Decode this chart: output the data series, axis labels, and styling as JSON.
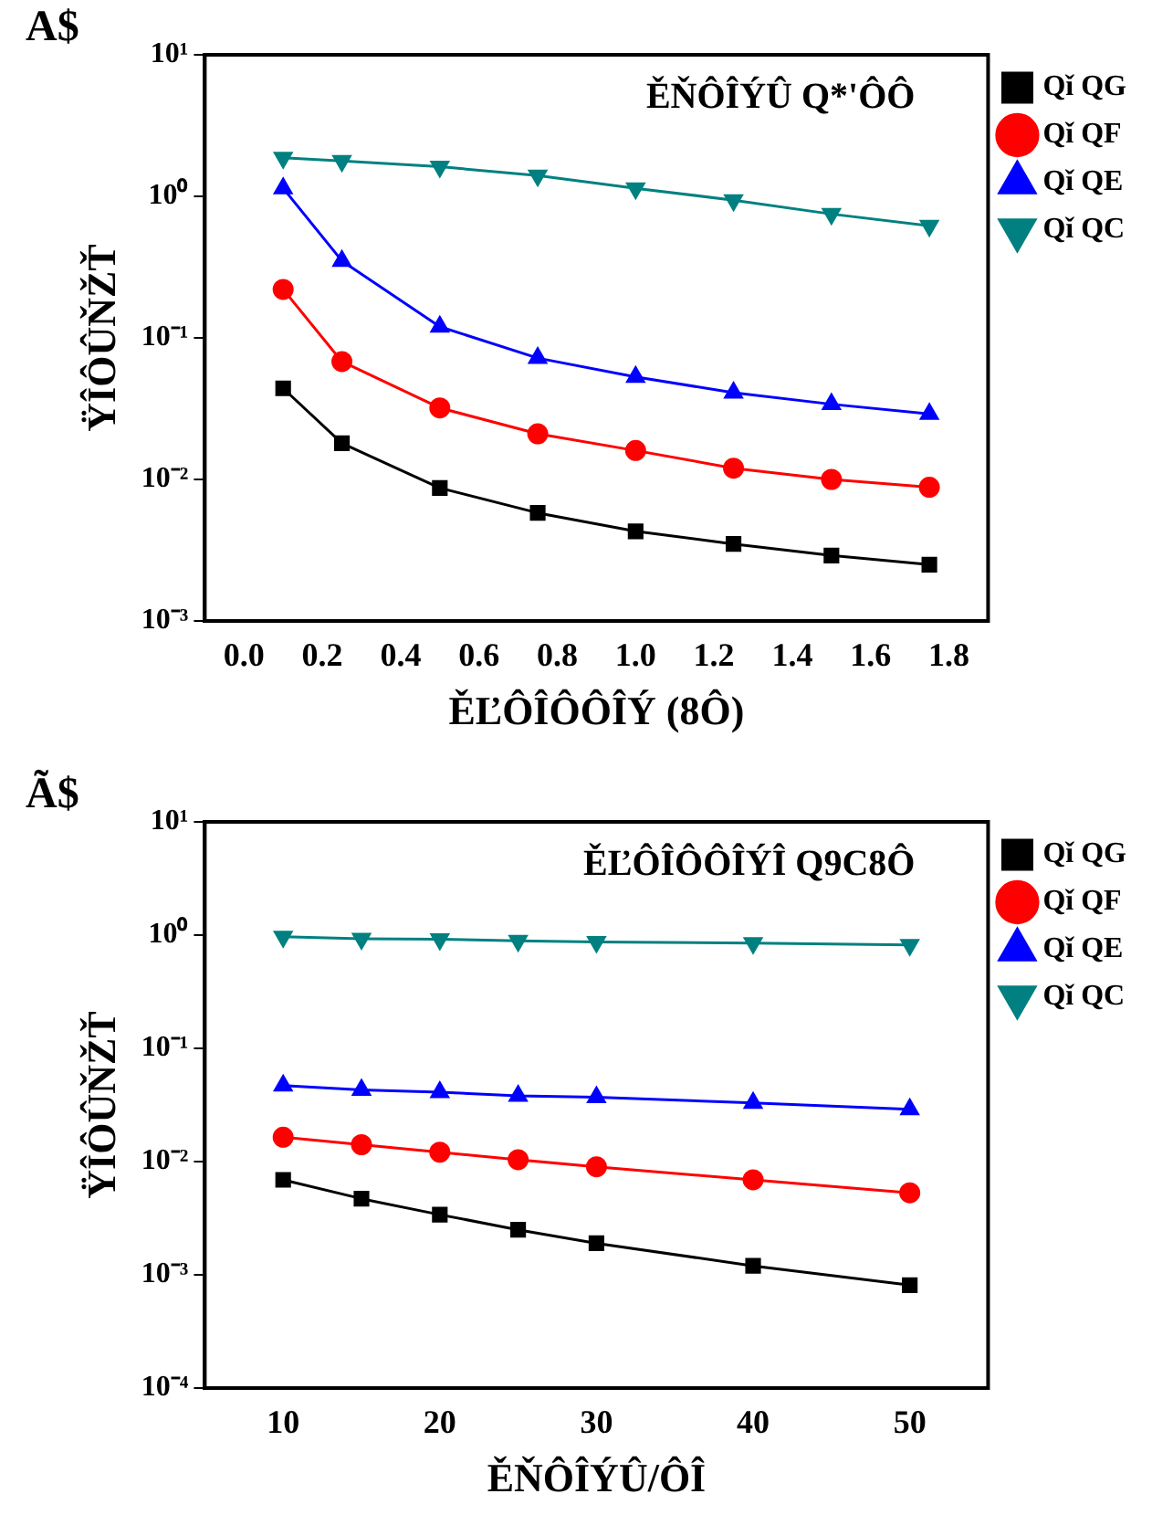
{
  "chart_data": [
    {
      "type": "line",
      "annotations": [
        "A$",
        "ĚŇÔÎÝÛ Q*'ÔÔ"
      ],
      "xlabel": "ĚĽÔÎÔÔÎÝ (8Ô)",
      "ylabel": "ŸÎÔÛŇŽŤ",
      "log": "y",
      "legend": "top right",
      "grid": false,
      "x": [
        0.1,
        0.25,
        0.5,
        0.75,
        1.0,
        1.25,
        1.5,
        1.75
      ],
      "xlim": [
        -0.1,
        1.9
      ],
      "xticks": [
        {
          "value": 0,
          "label": "0.0"
        },
        {
          "value": 0.2,
          "label": "0.2"
        },
        {
          "value": 0.4,
          "label": "0.4"
        },
        {
          "value": 0.6,
          "label": "0.6"
        },
        {
          "value": 0.8,
          "label": "0.8"
        },
        {
          "value": 1.0,
          "label": "1.0"
        },
        {
          "value": 1.2,
          "label": "1.2"
        },
        {
          "value": 1.4,
          "label": "1.4"
        },
        {
          "value": 1.6,
          "label": "1.6"
        },
        {
          "value": 1.8,
          "label": "1.8"
        }
      ],
      "ylim": [
        0.001,
        10
      ],
      "yticks": [
        {
          "value": 0.001,
          "label": "10⁻³"
        },
        {
          "value": 0.01,
          "label": "10⁻²"
        },
        {
          "value": 0.1,
          "label": "10⁻¹"
        },
        {
          "value": 1,
          "label": "10⁰"
        },
        {
          "value": 10,
          "label": "10¹"
        }
      ],
      "series": [
        {
          "name": "Qǐ QG",
          "color": "#000000",
          "marker": "square",
          "values": [
            0.044,
            0.018,
            0.0087,
            0.0058,
            0.0043,
            0.0035,
            0.0029,
            0.0025
          ]
        },
        {
          "name": "Qǐ QF",
          "color": "#ff0000",
          "marker": "circle",
          "values": [
            0.22,
            0.068,
            0.032,
            0.021,
            0.016,
            0.012,
            0.01,
            0.0088
          ]
        },
        {
          "name": "Qǐ QE",
          "color": "#0000ff",
          "marker": "triangle",
          "values": [
            1.14,
            0.35,
            0.12,
            0.072,
            0.053,
            0.041,
            0.034,
            0.029
          ]
        },
        {
          "name": "Qǐ QC",
          "color": "#008080",
          "marker": "triangle-down",
          "values": [
            1.87,
            1.78,
            1.62,
            1.4,
            1.14,
            0.94,
            0.75,
            0.62
          ]
        }
      ]
    },
    {
      "type": "line",
      "annotations": [
        "Ã$",
        "ĚĽÔÎÔÔÎÝÎ Q9C8Ô"
      ],
      "xlabel": "ĚŇÔÎÝÛ/ÔÎ",
      "ylabel": "ŸÎÔÛŇŽŤ",
      "log": "y",
      "legend": "top right",
      "grid": false,
      "x": [
        10,
        15,
        20,
        25,
        30,
        40,
        50
      ],
      "xlim": [
        5,
        55
      ],
      "xticks": [
        10,
        20,
        30,
        40,
        50
      ],
      "ylim": [
        0.0001,
        10
      ],
      "yticks": [
        {
          "value": 0.0001,
          "label": "10⁻⁴"
        },
        {
          "value": 0.001,
          "label": "10⁻³"
        },
        {
          "value": 0.01,
          "label": "10⁻²"
        },
        {
          "value": 0.1,
          "label": "10⁻¹"
        },
        {
          "value": 1,
          "label": "10⁰"
        },
        {
          "value": 10,
          "label": "10¹"
        }
      ],
      "series": [
        {
          "name": "Qǐ QG",
          "color": "#000000",
          "marker": "square",
          "values": [
            0.0069,
            0.0047,
            0.0034,
            0.0025,
            0.0019,
            0.0012,
            0.00081
          ]
        },
        {
          "name": "Qǐ QF",
          "color": "#ff0000",
          "marker": "circle",
          "values": [
            0.0164,
            0.0141,
            0.0121,
            0.0104,
            0.009,
            0.0069,
            0.0053
          ]
        },
        {
          "name": "Qǐ QE",
          "color": "#0000ff",
          "marker": "triangle",
          "values": [
            0.047,
            0.043,
            0.041,
            0.038,
            0.037,
            0.033,
            0.029
          ]
        },
        {
          "name": "Qǐ QC",
          "color": "#008080",
          "marker": "triangle-down",
          "values": [
            0.97,
            0.93,
            0.92,
            0.89,
            0.87,
            0.85,
            0.82
          ]
        }
      ]
    }
  ]
}
